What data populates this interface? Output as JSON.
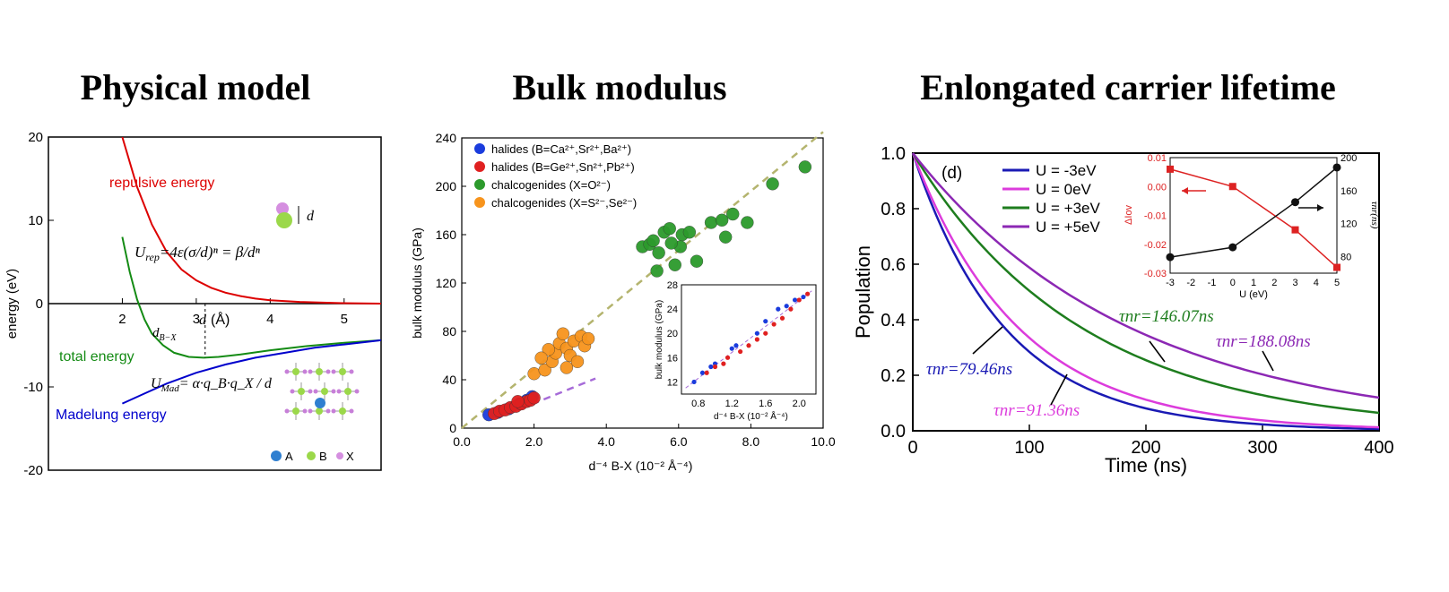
{
  "titles": {
    "left": "Physical model",
    "middle": "Bulk modulus",
    "right": "Enlongated carrier lifetime"
  },
  "chart_data": [
    {
      "type": "line",
      "title": "Physical model",
      "xlabel": "d (Å)",
      "ylabel": "energy (eV)",
      "xlim": [
        1.0,
        5.5
      ],
      "ylim": [
        -20,
        20
      ],
      "xticks": [
        "2",
        "3",
        "4",
        "5"
      ],
      "yticks": [
        "20",
        "10",
        "0",
        "-10",
        "-20"
      ],
      "series": [
        {
          "name": "repulsive energy",
          "color": "#dd0000",
          "points": [
            [
              2.0,
              20
            ],
            [
              2.2,
              14
            ],
            [
              2.4,
              9.5
            ],
            [
              2.6,
              6.2
            ],
            [
              2.8,
              4.1
            ],
            [
              3.0,
              2.8
            ],
            [
              3.2,
              1.9
            ],
            [
              3.4,
              1.3
            ],
            [
              3.6,
              0.9
            ],
            [
              3.8,
              0.6
            ],
            [
              4.0,
              0.4
            ],
            [
              4.4,
              0.2
            ],
            [
              5.0,
              0.05
            ],
            [
              5.5,
              0.0
            ]
          ]
        },
        {
          "name": "total energy",
          "color": "#148b14",
          "points": [
            [
              2.0,
              8
            ],
            [
              2.1,
              3.8
            ],
            [
              2.2,
              0.5
            ],
            [
              2.3,
              -1.9
            ],
            [
              2.4,
              -3.6
            ],
            [
              2.55,
              -5.0
            ],
            [
              2.7,
              -5.9
            ],
            [
              2.9,
              -6.4
            ],
            [
              3.1,
              -6.5
            ],
            [
              3.3,
              -6.4
            ],
            [
              3.6,
              -6.1
            ],
            [
              4.0,
              -5.6
            ],
            [
              4.5,
              -5.1
            ],
            [
              5.0,
              -4.7
            ],
            [
              5.5,
              -4.4
            ]
          ]
        },
        {
          "name": "Madelung energy",
          "color": "#0000cc",
          "points": [
            [
              2.0,
              -12
            ],
            [
              2.3,
              -10.8
            ],
            [
              2.6,
              -9.6
            ],
            [
              3.0,
              -8.3
            ],
            [
              3.4,
              -7.3
            ],
            [
              3.8,
              -6.5
            ],
            [
              4.2,
              -5.9
            ],
            [
              4.6,
              -5.3
            ],
            [
              5.0,
              -4.9
            ],
            [
              5.5,
              -4.4
            ]
          ]
        }
      ],
      "annotations": {
        "repulsive_label": "repulsive energy",
        "total_label": "total energy",
        "madelung_label": "Madelung energy",
        "urep_lhs": "U",
        "urep_sub": "rep",
        "urep_rhs": "=4ε(σ/d)ⁿ = β/dⁿ",
        "umad_lhs": "U",
        "umad_sub": "Mad",
        "umad_rhs": "= α·q_B·q_X / d",
        "dbx_label": "d",
        "dbx_sub": "B−X",
        "d_label": "d",
        "legend_a": "A",
        "legend_b": "B",
        "legend_x": "X"
      },
      "marker_x": 3.12
    },
    {
      "type": "scatter",
      "title": "Bulk modulus",
      "xlabel": "d⁻⁴ B-X (10⁻² Å⁻⁴)",
      "ylabel": "bulk modulus (GPa)",
      "xlim": [
        0,
        10
      ],
      "ylim": [
        0,
        240
      ],
      "xticks": [
        "0.0",
        "2.0",
        "4.0",
        "6.0",
        "8.0",
        "10.0"
      ],
      "yticks": [
        "0",
        "40",
        "80",
        "120",
        "160",
        "200",
        "240"
      ],
      "series": [
        {
          "name": "halides (B=Ca²⁺,Sr²⁺,Ba²⁺)",
          "color": "#1a3cdd",
          "points": [
            [
              0.75,
              11
            ],
            [
              1.0,
              13
            ],
            [
              1.3,
              16
            ],
            [
              1.6,
              20
            ],
            [
              1.8,
              23
            ],
            [
              1.95,
              26
            ]
          ]
        },
        {
          "name": "halides (B=Ge²⁺,Sn²⁺,Pb²⁺)",
          "color": "#e02020",
          "points": [
            [
              0.9,
              12
            ],
            [
              1.05,
              14
            ],
            [
              1.2,
              15
            ],
            [
              1.35,
              17
            ],
            [
              1.5,
              18
            ],
            [
              1.65,
              20
            ],
            [
              1.8,
              22
            ],
            [
              1.9,
              23
            ],
            [
              2.0,
              25
            ],
            [
              1.55,
              22
            ]
          ]
        },
        {
          "name": "chalcogenides (X=O²⁻)",
          "color": "#2c9a2c",
          "points": [
            [
              5.0,
              150
            ],
            [
              5.2,
              152
            ],
            [
              5.3,
              155
            ],
            [
              5.45,
              145
            ],
            [
              5.6,
              162
            ],
            [
              5.75,
              165
            ],
            [
              5.4,
              130
            ],
            [
              5.9,
              135
            ],
            [
              6.05,
              150
            ],
            [
              6.1,
              160
            ],
            [
              5.8,
              153
            ],
            [
              6.3,
              162
            ],
            [
              6.5,
              138
            ],
            [
              6.9,
              170
            ],
            [
              7.2,
              172
            ],
            [
              7.3,
              158
            ],
            [
              7.5,
              177
            ],
            [
              7.9,
              170
            ],
            [
              8.6,
              202
            ],
            [
              9.5,
              216
            ]
          ]
        },
        {
          "name": "chalcogenides (X=S²⁻,Se²⁻)",
          "color": "#f7941d",
          "points": [
            [
              2.0,
              45
            ],
            [
              2.3,
              48
            ],
            [
              2.5,
              55
            ],
            [
              2.6,
              62
            ],
            [
              2.7,
              70
            ],
            [
              2.8,
              78
            ],
            [
              2.9,
              66
            ],
            [
              3.0,
              60
            ],
            [
              3.1,
              72
            ],
            [
              3.3,
              76
            ],
            [
              3.4,
              68
            ],
            [
              3.5,
              74
            ],
            [
              2.4,
              65
            ],
            [
              2.2,
              58
            ],
            [
              3.2,
              55
            ],
            [
              2.9,
              50
            ]
          ]
        }
      ],
      "fits": [
        {
          "name": "overall fit",
          "color": "#b4b46e",
          "points": [
            [
              0,
              0
            ],
            [
              10,
              245
            ]
          ]
        },
        {
          "name": "halide fit",
          "color": "#a66bd8",
          "points": [
            [
              1.3,
              12
            ],
            [
              3.7,
              41
            ]
          ]
        }
      ],
      "inset": {
        "xlabel": "d⁻⁴ B-X (10⁻² Å⁻⁴)",
        "ylabel": "bulk modulus (GPa)",
        "xlim": [
          0.6,
          2.2
        ],
        "ylim": [
          10,
          28
        ],
        "xticks": [
          "0.8",
          "1.2",
          "1.6",
          "2.0"
        ],
        "yticks": [
          "12",
          "16",
          "20",
          "24",
          "28"
        ],
        "blue": [
          [
            0.75,
            12
          ],
          [
            0.85,
            13.5
          ],
          [
            0.95,
            14.5
          ],
          [
            1.0,
            15
          ],
          [
            1.2,
            17.5
          ],
          [
            1.25,
            18
          ],
          [
            1.5,
            20
          ],
          [
            1.6,
            22
          ],
          [
            1.75,
            24
          ],
          [
            1.85,
            24.5
          ],
          [
            1.95,
            25.5
          ],
          [
            2.05,
            26
          ]
        ],
        "red": [
          [
            0.9,
            13.5
          ],
          [
            1.0,
            14.5
          ],
          [
            1.1,
            15
          ],
          [
            1.15,
            16
          ],
          [
            1.3,
            17
          ],
          [
            1.4,
            18
          ],
          [
            1.5,
            19
          ],
          [
            1.6,
            20
          ],
          [
            1.7,
            21.5
          ],
          [
            1.8,
            22.5
          ],
          [
            1.9,
            24
          ],
          [
            2.0,
            25.5
          ],
          [
            2.1,
            26.5
          ]
        ]
      }
    },
    {
      "type": "line",
      "title": "Enlongated carrier lifetime",
      "xlabel": "Time (ns)",
      "ylabel": "Population",
      "panel_label": "(d)",
      "xlim": [
        0,
        400
      ],
      "ylim": [
        0,
        1.0
      ],
      "xticks": [
        "0",
        "100",
        "200",
        "300",
        "400"
      ],
      "yticks": [
        "0.0",
        "0.2",
        "0.4",
        "0.6",
        "0.8",
        "1.0"
      ],
      "series": [
        {
          "name": "U = -3eV",
          "color": "#1a1ab4",
          "tau": 79.46,
          "label": "τnr=79.46ns"
        },
        {
          "name": "U = 0eV",
          "color": "#dc3cdc",
          "tau": 91.36,
          "label": "τnr=91.36ns"
        },
        {
          "name": "U = +3eV",
          "color": "#1e7d1e",
          "tau": 146.07,
          "label": "τnr=146.07ns"
        },
        {
          "name": "U = +5eV",
          "color": "#8c28b4",
          "tau": 188.08,
          "label": "τnr=188.08ns"
        }
      ],
      "inset": {
        "xlabel": "U (eV)",
        "ylabel_left": "ΔIov",
        "ylabel_right": "τnr(ns)",
        "xticks": [
          "-3",
          "-2",
          "-1",
          "0",
          "1",
          "2",
          "3",
          "4",
          "5"
        ],
        "yticks_left": [
          "0.01",
          "0.00",
          "-0.01",
          "-0.02",
          "-0.03"
        ],
        "yticks_right": [
          "200",
          "160",
          "120",
          "80"
        ],
        "delta_iov": [
          [
            -3,
            0.006
          ],
          [
            0,
            0.0
          ],
          [
            3,
            -0.015
          ],
          [
            5,
            -0.028
          ]
        ],
        "tau_nr": [
          [
            -3,
            79.46
          ],
          [
            0,
            91.36
          ],
          [
            3,
            146.07
          ],
          [
            5,
            188.08
          ]
        ]
      }
    }
  ]
}
